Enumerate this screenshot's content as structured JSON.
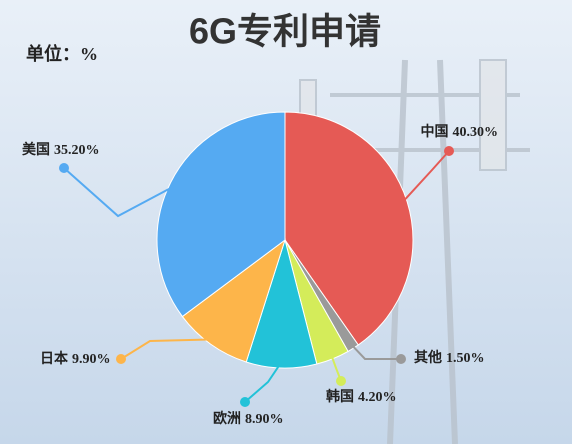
{
  "chart_data": {
    "type": "pie",
    "title": "6G专利申请",
    "unit": "单位：%",
    "categories": [
      "中国",
      "其他",
      "韩国",
      "欧洲",
      "日本",
      "美国"
    ],
    "values": [
      40.3,
      1.5,
      4.2,
      8.9,
      9.9,
      35.2
    ],
    "value_labels": [
      "40.30%",
      "1.50%",
      "4.20%",
      "8.90%",
      "9.90%",
      "35.20%"
    ],
    "colors": [
      "#e55a55",
      "#9a9a9a",
      "#d4ec5a",
      "#22c2d8",
      "#fdb54a",
      "#55aaf2"
    ]
  }
}
